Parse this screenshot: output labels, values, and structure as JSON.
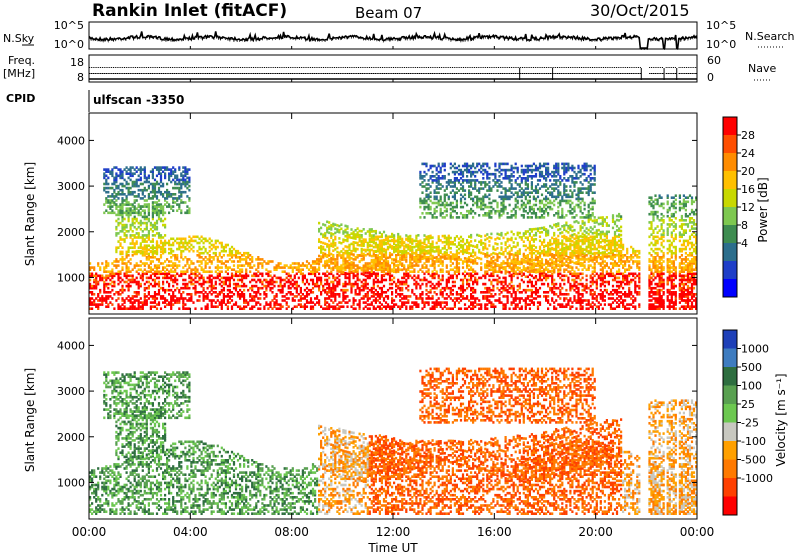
{
  "header": {
    "station": "Rankin Inlet (fitACF)",
    "beam": "Beam 07",
    "date": "30/Oct/2015"
  },
  "left_labels": {
    "nsky": "N.Sky",
    "freq_line1": "Freq.",
    "freq_line2": "[MHz]",
    "cpid": "CPID"
  },
  "right_labels": {
    "nsearch": "N.Search",
    "nave": "Nave"
  },
  "cpid_value": "ulfscan -3350",
  "chart_data": [
    {
      "type": "line",
      "name": "noise-panel",
      "left_ticks": [
        "10^5",
        "10^0"
      ],
      "right_ticks": [
        "10^5",
        "10^0"
      ]
    },
    {
      "type": "scatter",
      "name": "freq-panel",
      "left_ticks": [
        "18",
        "8"
      ],
      "right_ticks": [
        "60",
        "0"
      ]
    },
    {
      "type": "heatmap",
      "name": "power",
      "xlabel": "",
      "ylabel": "Slant Range [km]",
      "yticks": [
        "1000",
        "2000",
        "3000",
        "4000"
      ],
      "ylim": [
        200,
        4600
      ],
      "colorbar_label": "Power [dB]",
      "colorbar_ticks": [
        "28",
        "24",
        "20",
        "16",
        "12",
        "8",
        "4"
      ],
      "colorbar_colors": [
        "#ff0000",
        "#ff4e00",
        "#ff8c00",
        "#ffc000",
        "#c8d800",
        "#7ec850",
        "#3e8c50",
        "#2c6e8c",
        "#1e3ec8",
        "#0000ff"
      ],
      "gaps_hours": [
        [
          21.75,
          22.05
        ],
        [
          22.65,
          22.72
        ],
        [
          23.2,
          23.26
        ]
      ]
    },
    {
      "type": "heatmap",
      "name": "velocity",
      "xlabel": "Time UT",
      "ylabel": "Slant Range [km]",
      "xticks": [
        "00:00",
        "04:00",
        "08:00",
        "12:00",
        "16:00",
        "20:00",
        "00:00"
      ],
      "yticks": [
        "1000",
        "2000",
        "3000",
        "4000"
      ],
      "ylim": [
        200,
        4600
      ],
      "colorbar_label": "Velocity [m s⁻¹]",
      "colorbar_ticks": [
        "1000",
        "500",
        "100",
        "25",
        "-25",
        "-100",
        "-500",
        "-1000"
      ],
      "colorbar_colors": [
        "#1e40b8",
        "#3e7cc0",
        "#2e6e40",
        "#58a050",
        "#6cc850",
        "#c8c8c0",
        "#ffa000",
        "#ff7a00",
        "#ff4000",
        "#ff0000"
      ]
    }
  ]
}
